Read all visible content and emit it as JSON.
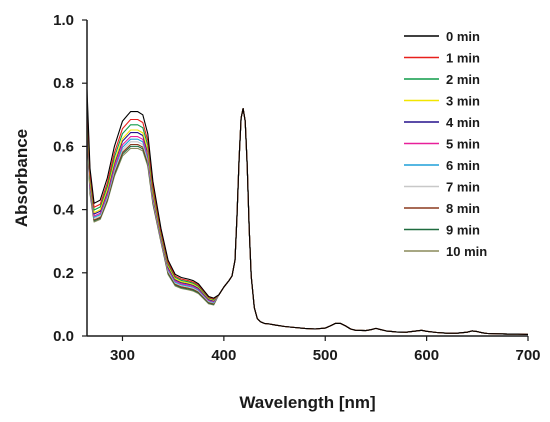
{
  "chart_data": {
    "type": "line",
    "title": "",
    "xlabel": "Wavelength [nm]",
    "ylabel": "Absorbance",
    "xlim": [
      265,
      700
    ],
    "ylim": [
      0,
      1.0
    ],
    "x_ticks": [
      300,
      400,
      500,
      600,
      700
    ],
    "x_tick_labels": [
      "300",
      "400",
      "500",
      "600",
      "700"
    ],
    "y_ticks": [
      0,
      0.2,
      0.4,
      0.6,
      0.8,
      1.0
    ],
    "y_tick_labels": [
      "0.0",
      "0.2",
      "0.4",
      "0.6",
      "0.8",
      "1.0"
    ],
    "grid": false,
    "legend_position": "top-right",
    "x": [
      265,
      268,
      272,
      278,
      285,
      292,
      300,
      308,
      315,
      320,
      325,
      330,
      338,
      345,
      352,
      358,
      365,
      370,
      375,
      380,
      385,
      390,
      395,
      400,
      405,
      408,
      411,
      413,
      415,
      417,
      419,
      421,
      423,
      425,
      427,
      430,
      433,
      436,
      440,
      445,
      450,
      460,
      470,
      480,
      490,
      500,
      505,
      510,
      515,
      520,
      525,
      530,
      540,
      545,
      550,
      555,
      560,
      570,
      580,
      590,
      595,
      600,
      610,
      620,
      630,
      640,
      645,
      650,
      655,
      660,
      670,
      680,
      690,
      700
    ],
    "base_values": [
      0.78,
      0.53,
      0.42,
      0.43,
      0.5,
      0.6,
      0.68,
      0.71,
      0.71,
      0.7,
      0.64,
      0.49,
      0.34,
      0.24,
      0.195,
      0.185,
      0.18,
      0.175,
      0.165,
      0.145,
      0.125,
      0.12,
      0.13,
      0.155,
      0.175,
      0.19,
      0.24,
      0.38,
      0.56,
      0.69,
      0.72,
      0.68,
      0.54,
      0.34,
      0.19,
      0.09,
      0.055,
      0.045,
      0.04,
      0.038,
      0.035,
      0.03,
      0.027,
      0.024,
      0.022,
      0.025,
      0.032,
      0.04,
      0.04,
      0.032,
      0.022,
      0.018,
      0.017,
      0.02,
      0.024,
      0.02,
      0.016,
      0.013,
      0.012,
      0.016,
      0.018,
      0.015,
      0.011,
      0.009,
      0.009,
      0.012,
      0.016,
      0.014,
      0.01,
      0.008,
      0.007,
      0.006,
      0.006,
      0.005
    ],
    "series": [
      {
        "name": "0 min",
        "color": "#000000",
        "peak_300": 0.71
      },
      {
        "name": "1 min",
        "color": "#e8201c",
        "peak_300": 0.68
      },
      {
        "name": "2 min",
        "color": "#0e9b48",
        "peak_300": 0.66
      },
      {
        "name": "3 min",
        "color": "#f2e600",
        "peak_300": 0.64
      },
      {
        "name": "4 min",
        "color": "#25108c",
        "peak_300": 0.63
      },
      {
        "name": "5 min",
        "color": "#e8209a",
        "peak_300": 0.615
      },
      {
        "name": "6 min",
        "color": "#1f9fd9",
        "peak_300": 0.605
      },
      {
        "name": "7 min",
        "color": "#c8c8c8",
        "peak_300": 0.595
      },
      {
        "name": "8 min",
        "color": "#8b3a1e",
        "peak_300": 0.585
      },
      {
        "name": "9 min",
        "color": "#1f6b3f",
        "peak_300": 0.578
      },
      {
        "name": "10 min",
        "color": "#8a8a5a",
        "peak_300": 0.57
      }
    ]
  }
}
